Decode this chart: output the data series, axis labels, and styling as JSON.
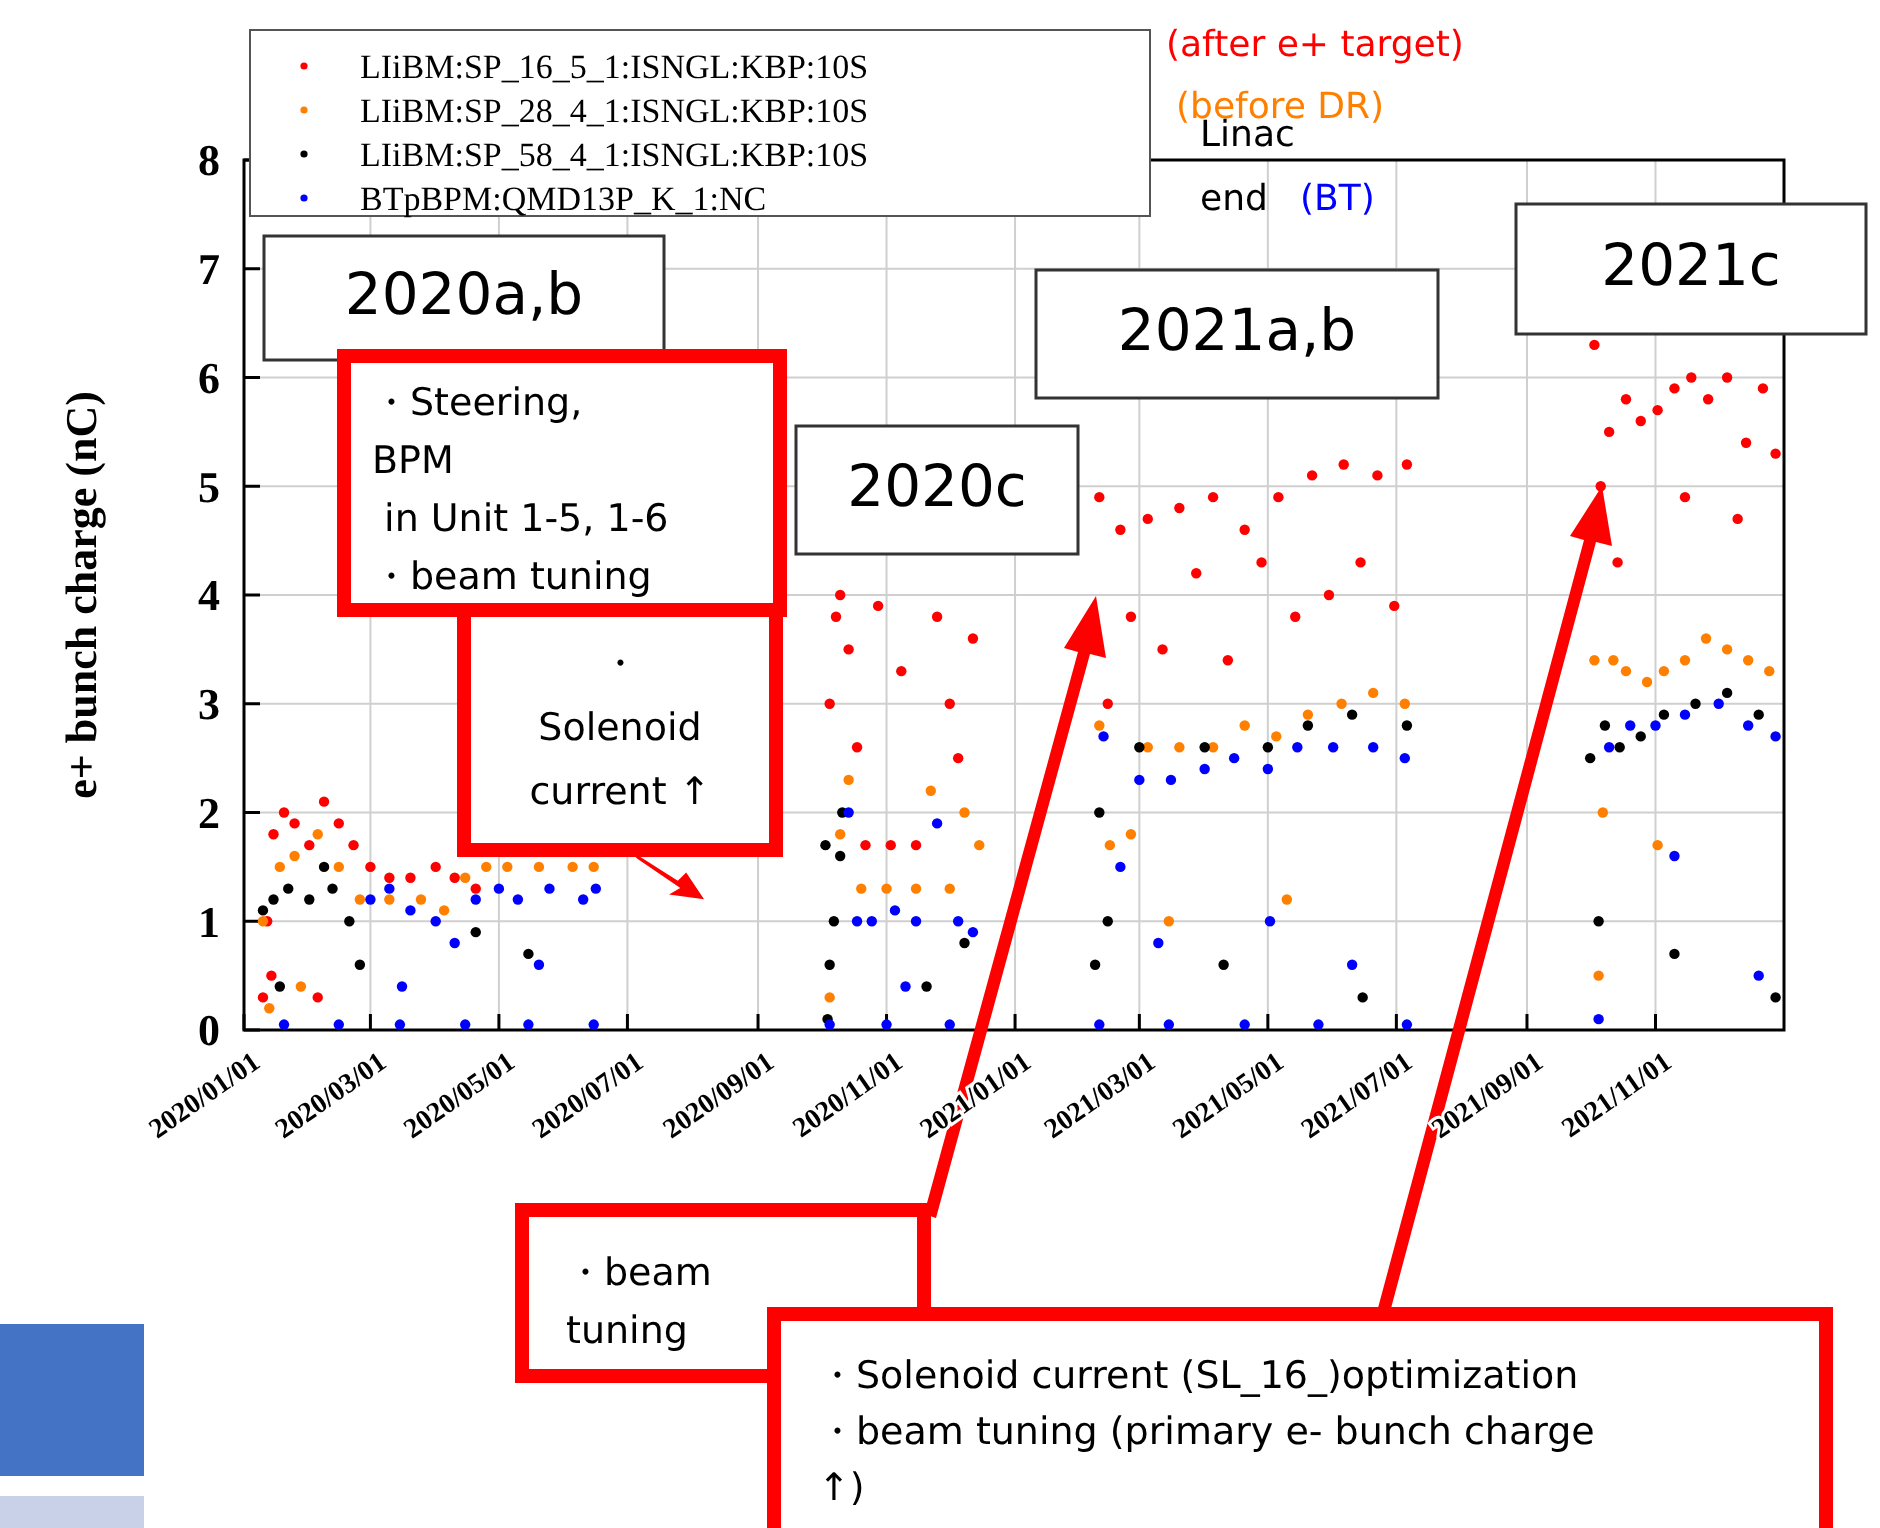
{
  "chart_data": {
    "type": "scatter",
    "ylabel": "e+ bunch charge (nC)",
    "xlim": [
      "2020-01-01",
      "2022-01-01"
    ],
    "xticks": [
      {
        "value": "2020-01-01",
        "label": "2020/01/01"
      },
      {
        "value": "2020-03-01",
        "label": "2020/03/01"
      },
      {
        "value": "2020-05-01",
        "label": "2020/05/01"
      },
      {
        "value": "2020-07-01",
        "label": "2020/07/01"
      },
      {
        "value": "2020-09-01",
        "label": "2020/09/01"
      },
      {
        "value": "2020-11-01",
        "label": "2020/11/01"
      },
      {
        "value": "2021-01-01",
        "label": "2021/01/01"
      },
      {
        "value": "2021-03-01",
        "label": "2021/03/01"
      },
      {
        "value": "2021-05-01",
        "label": "2021/05/01"
      },
      {
        "value": "2021-07-01",
        "label": "2021/07/01"
      },
      {
        "value": "2021-09-01",
        "label": "2021/09/01"
      },
      {
        "value": "2021-11-01",
        "label": "2021/11/01"
      }
    ],
    "ylim": [
      0,
      8
    ],
    "yticks": [
      0,
      1,
      2,
      3,
      4,
      5,
      6,
      7,
      8
    ],
    "grid": true,
    "legend": "top left",
    "marker": "circle",
    "series": [
      {
        "name": "LIiBM:SP_16_5_1:ISNGL:KBP:10S",
        "color": "#ff0000",
        "x": [
          "2020-01-10",
          "2020-01-12",
          "2020-01-15",
          "2020-01-20",
          "2020-01-25",
          "2020-02-01",
          "2020-02-08",
          "2020-02-15",
          "2020-02-22",
          "2020-03-01",
          "2020-03-10",
          "2020-03-20",
          "2020-04-01",
          "2020-04-10",
          "2020-04-20",
          "2020-01-14",
          "2020-02-05",
          "2020-10-05",
          "2020-10-08",
          "2020-10-10",
          "2020-10-14",
          "2020-10-18",
          "2020-10-22",
          "2020-10-28",
          "2020-11-03",
          "2020-11-08",
          "2020-11-15",
          "2020-11-25",
          "2020-12-01",
          "2020-12-05",
          "2020-12-12",
          "2021-02-10",
          "2021-02-14",
          "2021-02-20",
          "2021-02-25",
          "2021-03-05",
          "2021-03-12",
          "2021-03-20",
          "2021-03-28",
          "2021-04-05",
          "2021-04-12",
          "2021-04-20",
          "2021-04-28",
          "2021-05-06",
          "2021-05-14",
          "2021-05-22",
          "2021-05-30",
          "2021-06-06",
          "2021-06-14",
          "2021-06-22",
          "2021-06-30",
          "2021-07-06",
          "2021-10-03",
          "2021-10-06",
          "2021-10-10",
          "2021-10-14",
          "2021-10-18",
          "2021-10-25",
          "2021-11-02",
          "2021-11-10",
          "2021-11-18",
          "2021-11-26",
          "2021-12-05",
          "2021-12-14",
          "2021-12-22",
          "2021-12-28",
          "2021-11-15",
          "2021-12-10"
        ],
        "values": [
          0.3,
          1.0,
          1.8,
          2.0,
          1.9,
          1.7,
          2.1,
          1.9,
          1.7,
          1.5,
          1.4,
          1.4,
          1.5,
          1.4,
          1.3,
          0.5,
          0.3,
          3.0,
          3.8,
          4.0,
          3.5,
          2.6,
          1.7,
          3.9,
          1.7,
          3.3,
          1.7,
          3.8,
          3.0,
          2.5,
          3.6,
          4.9,
          3.0,
          4.6,
          3.8,
          4.7,
          3.5,
          4.8,
          4.2,
          4.9,
          3.4,
          4.6,
          4.3,
          4.9,
          3.8,
          5.1,
          4.0,
          5.2,
          4.3,
          5.1,
          3.9,
          5.2,
          6.3,
          5.0,
          5.5,
          4.3,
          5.8,
          5.6,
          5.7,
          5.9,
          6.0,
          5.8,
          6.0,
          5.4,
          5.9,
          5.3,
          4.9,
          4.7
        ]
      },
      {
        "name": "LIiBM:SP_28_4_1:ISNGL:KBP:10S",
        "color": "#ff8000",
        "x": [
          "2020-01-10",
          "2020-01-13",
          "2020-01-18",
          "2020-01-25",
          "2020-02-05",
          "2020-02-15",
          "2020-02-25",
          "2020-03-10",
          "2020-03-25",
          "2020-04-05",
          "2020-04-15",
          "2020-04-25",
          "2020-05-05",
          "2020-05-20",
          "2020-06-05",
          "2020-06-15",
          "2020-01-28",
          "2020-10-05",
          "2020-10-10",
          "2020-10-14",
          "2020-10-20",
          "2020-11-01",
          "2020-11-15",
          "2020-11-22",
          "2020-12-01",
          "2020-12-08",
          "2020-12-15",
          "2021-02-10",
          "2021-02-15",
          "2021-02-25",
          "2021-03-05",
          "2021-03-20",
          "2021-04-05",
          "2021-04-20",
          "2021-05-05",
          "2021-05-20",
          "2021-06-05",
          "2021-06-20",
          "2021-07-05",
          "2021-03-15",
          "2021-05-10",
          "2021-10-03",
          "2021-10-07",
          "2021-10-12",
          "2021-10-18",
          "2021-10-28",
          "2021-11-05",
          "2021-11-15",
          "2021-11-25",
          "2021-12-05",
          "2021-12-15",
          "2021-12-25",
          "2021-10-05",
          "2021-11-02"
        ],
        "values": [
          1.0,
          0.2,
          1.5,
          1.6,
          1.8,
          1.5,
          1.2,
          1.2,
          1.2,
          1.1,
          1.4,
          1.5,
          1.5,
          1.5,
          1.5,
          1.5,
          0.4,
          0.3,
          1.8,
          2.3,
          1.3,
          1.3,
          1.3,
          2.2,
          1.3,
          2.0,
          1.7,
          2.8,
          1.7,
          1.8,
          2.6,
          2.6,
          2.6,
          2.8,
          2.7,
          2.9,
          3.0,
          3.1,
          3.0,
          1.0,
          1.2,
          3.4,
          2.0,
          3.4,
          3.3,
          3.2,
          3.3,
          3.4,
          3.6,
          3.5,
          3.4,
          3.3,
          0.5,
          1.7
        ]
      },
      {
        "name": "LIiBM:SP_58_4_1:ISNGL:KBP:10S",
        "color": "#000000",
        "x": [
          "2020-01-10",
          "2020-01-15",
          "2020-01-22",
          "2020-02-01",
          "2020-02-08",
          "2020-02-12",
          "2020-02-20",
          "2020-01-18",
          "2020-02-25",
          "2020-04-20",
          "2020-05-15",
          "2020-10-04",
          "2020-10-05",
          "2020-10-07",
          "2020-10-10",
          "2020-10-11",
          "2020-10-03",
          "2020-11-20",
          "2020-12-08",
          "2021-02-08",
          "2021-02-10",
          "2021-02-14",
          "2021-03-01",
          "2021-04-01",
          "2021-05-01",
          "2021-05-20",
          "2021-06-10",
          "2021-07-06",
          "2021-04-10",
          "2021-06-15",
          "2021-10-01",
          "2021-10-05",
          "2021-10-08",
          "2021-10-15",
          "2021-10-25",
          "2021-11-05",
          "2021-11-20",
          "2021-12-05",
          "2021-12-20",
          "2021-11-10",
          "2021-12-28"
        ],
        "values": [
          1.1,
          1.2,
          1.3,
          1.2,
          1.5,
          1.3,
          1.0,
          0.4,
          0.6,
          0.9,
          0.7,
          0.1,
          0.6,
          1.0,
          1.6,
          2.0,
          1.7,
          0.4,
          0.8,
          0.6,
          2.0,
          1.0,
          2.6,
          2.6,
          2.6,
          2.8,
          2.9,
          2.8,
          0.6,
          0.3,
          2.5,
          1.0,
          2.8,
          2.6,
          2.7,
          2.9,
          3.0,
          3.1,
          2.9,
          0.7,
          0.3
        ]
      },
      {
        "name": "BTpBPM:QMD13P_K_1:NC",
        "color": "#0000ff",
        "x": [
          "2020-01-20",
          "2020-02-15",
          "2020-03-15",
          "2020-04-15",
          "2020-05-15",
          "2020-06-15",
          "2020-03-01",
          "2020-03-10",
          "2020-03-20",
          "2020-04-01",
          "2020-04-10",
          "2020-04-20",
          "2020-05-01",
          "2020-05-10",
          "2020-05-25",
          "2020-06-10",
          "2020-06-16",
          "2020-03-16",
          "2020-05-20",
          "2020-10-05",
          "2020-11-01",
          "2020-12-01",
          "2020-10-14",
          "2020-10-18",
          "2020-10-25",
          "2020-11-05",
          "2020-11-15",
          "2020-11-25",
          "2020-12-05",
          "2020-12-12",
          "2020-11-10",
          "2021-02-10",
          "2021-03-15",
          "2021-04-20",
          "2021-05-25",
          "2021-07-06",
          "2021-02-12",
          "2021-02-20",
          "2021-03-01",
          "2021-03-16",
          "2021-04-01",
          "2021-04-15",
          "2021-05-01",
          "2021-05-15",
          "2021-06-01",
          "2021-06-20",
          "2021-07-05",
          "2021-03-10",
          "2021-05-02",
          "2021-06-10",
          "2021-10-05",
          "2021-10-10",
          "2021-10-20",
          "2021-11-01",
          "2021-11-15",
          "2021-12-01",
          "2021-12-15",
          "2021-12-28",
          "2021-11-10",
          "2021-12-20"
        ],
        "values": [
          0.05,
          0.05,
          0.05,
          0.05,
          0.05,
          0.05,
          1.2,
          1.3,
          1.1,
          1.0,
          0.8,
          1.2,
          1.3,
          1.2,
          1.3,
          1.2,
          1.3,
          0.4,
          0.6,
          0.05,
          0.05,
          0.05,
          2.0,
          1.0,
          1.0,
          1.1,
          1.0,
          1.9,
          1.0,
          0.9,
          0.4,
          0.05,
          0.05,
          0.05,
          0.05,
          0.05,
          2.7,
          1.5,
          2.3,
          2.3,
          2.4,
          2.5,
          2.4,
          2.6,
          2.6,
          2.6,
          2.5,
          0.8,
          1.0,
          0.6,
          0.1,
          2.6,
          2.8,
          2.8,
          2.9,
          3.0,
          2.8,
          2.7,
          1.6,
          0.5
        ]
      }
    ],
    "annotations": [
      "(after e+ target)",
      "(before DR)",
      "Linac\nend",
      "(BT)",
      "2020a,b",
      "2020c",
      "2021a,b",
      "2021c",
      "・Steering,\nBPM\n in Unit 1-5, 1-6\n・beam tuning",
      "・\nSolenoid\ncurrent ↑",
      "・beam\ntuning",
      "・Solenoid current (SL_16_)optimization\n・beam tuning (primary e- bunch charge\n↑)"
    ]
  }
}
